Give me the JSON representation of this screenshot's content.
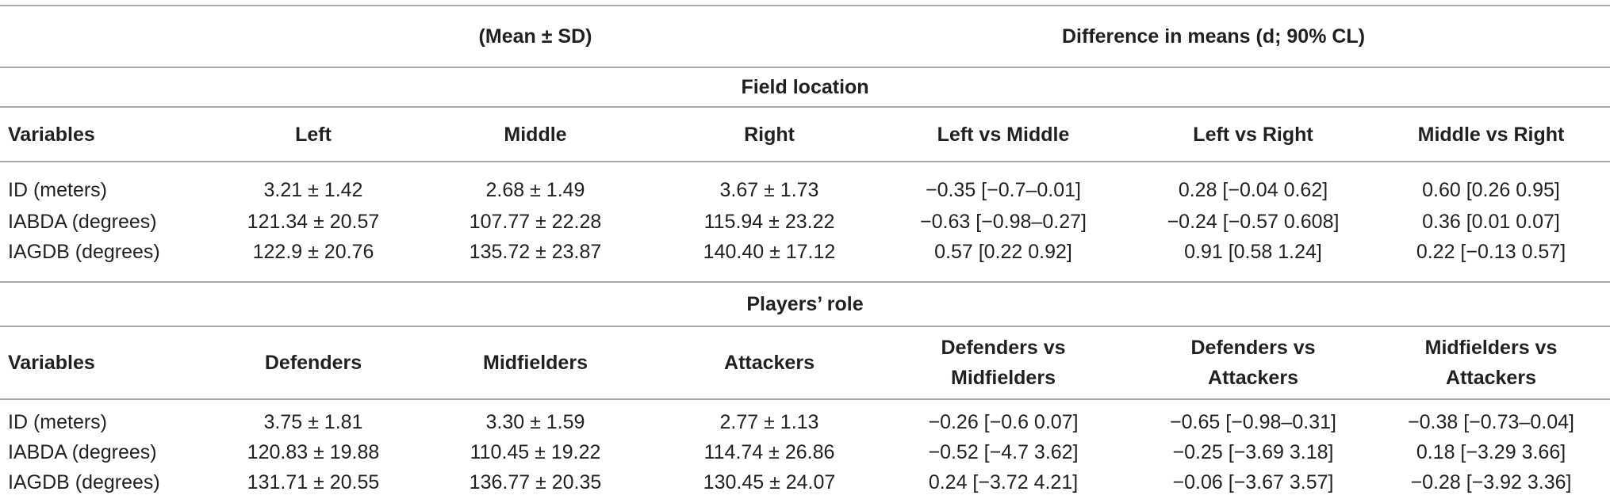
{
  "header": {
    "mean_sd": "(Mean ± SD)",
    "difference": "Difference in means (d; 90% CL)"
  },
  "sections": [
    {
      "title": "Field location",
      "columns": [
        "Variables",
        "Left",
        "Middle",
        "Right",
        "Left vs Middle",
        "Left vs Right",
        "Middle vs Right"
      ],
      "rows": [
        [
          "ID (meters)",
          "3.21 ± 1.42",
          "2.68 ± 1.49",
          "3.67 ± 1.73",
          "−0.35 [−0.7–0.01]",
          "0.28 [−0.04 0.62]",
          "0.60 [0.26 0.95]"
        ],
        [
          "IABDA (degrees)",
          "121.34 ± 20.57",
          "107.77 ± 22.28",
          "115.94 ± 23.22",
          "−0.63 [−0.98–0.27]",
          "−0.24 [−0.57 0.608]",
          "0.36 [0.01 0.07]"
        ],
        [
          "IAGDB (degrees)",
          "122.9 ± 20.76",
          "135.72 ± 23.87",
          "140.40 ± 17.12",
          "0.57 [0.22 0.92]",
          "0.91 [0.58 1.24]",
          "0.22 [−0.13 0.57]"
        ]
      ]
    },
    {
      "title": "Players’ role",
      "columns": [
        "Variables",
        "Defenders",
        "Midfielders",
        "Attackers",
        "Defenders vs Midfielders",
        "Defenders vs Attackers",
        "Midfielders vs Attackers"
      ],
      "rows": [
        [
          "ID (meters)",
          "3.75 ± 1.81",
          "3.30 ± 1.59",
          "2.77 ± 1.13",
          "−0.26 [−0.6 0.07]",
          "−0.65 [−0.98–0.31]",
          "−0.38 [−0.73–0.04]"
        ],
        [
          "IABDA (degrees)",
          "120.83 ± 19.88",
          "110.45 ± 19.22",
          "114.74 ± 26.86",
          "−0.52 [−4.7 3.62]",
          "−0.25 [−3.69 3.18]",
          "0.18 [−3.29 3.66]"
        ],
        [
          "IAGDB (degrees)",
          "131.71 ± 20.55",
          "136.77 ± 20.35",
          "130.45 ± 24.07",
          "0.24 [−3.72 4.21]",
          "−0.06 [−3.67 3.57]",
          "−0.28 [−3.92 3.36]"
        ]
      ]
    }
  ]
}
